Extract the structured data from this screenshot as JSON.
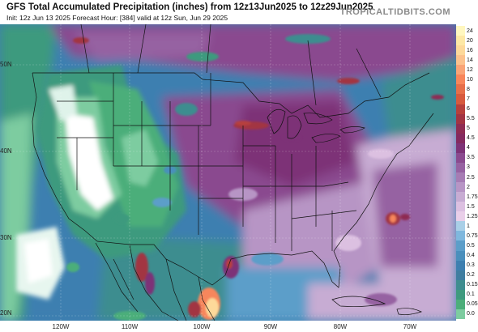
{
  "header": {
    "title": "GFS Total Accumulated Precipitation (inches) from 12z13Jun2025 to 12z29Jun2025",
    "subtitle": "Init: 12z Jun 13 2025   Forecast Hour: [384]   valid at 12z Sun, Jun 29 2025",
    "brand": "TROPICALTIDBITS.COM"
  },
  "colorbar": {
    "levels": [
      "24",
      "20",
      "16",
      "14",
      "12",
      "10",
      "8",
      "7",
      "6",
      "5.5",
      "5",
      "4.5",
      "4",
      "3.5",
      "3",
      "2.5",
      "2",
      "1.75",
      "1.5",
      "1.25",
      "1",
      "0.75",
      "0.5",
      "0.4",
      "0.3",
      "0.2",
      "0.15",
      "0.1",
      "0.05",
      "0.0"
    ],
    "colors": [
      "#fff7bf",
      "#fde8a5",
      "#fdd99a",
      "#fcc28d",
      "#f9a477",
      "#f7865b",
      "#e66f4a",
      "#d75a3e",
      "#b7403c",
      "#a23443",
      "#8e2c53",
      "#842a5f",
      "#7d3377",
      "#8a4a8f",
      "#9662a2",
      "#a67cb4",
      "#b795c5",
      "#c7acd3",
      "#dcc0e1",
      "#e9cfe9",
      "#a9cfe7",
      "#7fb8de",
      "#5b9ec9",
      "#4a8fbc",
      "#3d7fb0",
      "#3f7da0",
      "#3e8d8f",
      "#3e9a7e",
      "#4cae7a",
      "#7dcca0"
    ]
  },
  "map": {
    "longitude_labels": [
      "120W",
      "110W",
      "100W",
      "90W",
      "80W",
      "70W"
    ],
    "latitude_labels": [
      "50N",
      "40N",
      "30N",
      "20N"
    ],
    "palette": {
      "ocean_base": "#3d7fb0",
      "dry_white": "#ffffff",
      "light_green": "#7dcca0",
      "green": "#3e9a7e",
      "teal": "#3e8d8f",
      "blue": "#5b9ec9",
      "lavender": "#c7acd3",
      "purple": "#8a4a8f",
      "deep_purple": "#7d3377",
      "magenta": "#a23443",
      "orange": "#f7865b",
      "yellow": "#fde8a5"
    }
  }
}
